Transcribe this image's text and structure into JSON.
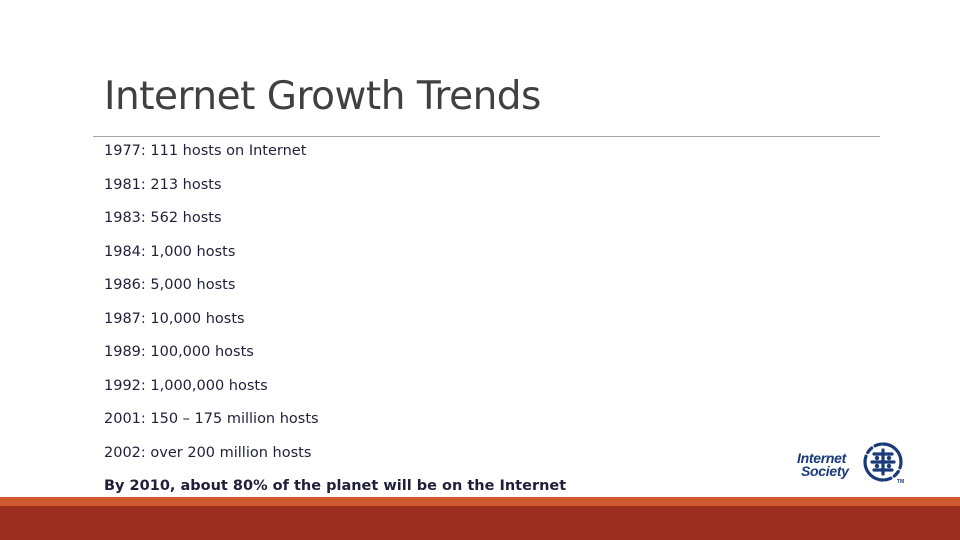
{
  "slide": {
    "title": "Internet Growth Trends",
    "bullets": [
      {
        "text": "1977: 111 hosts on Internet",
        "bold": false
      },
      {
        "text": "1981: 213 hosts",
        "bold": false
      },
      {
        "text": "1983: 562 hosts",
        "bold": false
      },
      {
        "text": "1984: 1,000 hosts",
        "bold": false
      },
      {
        "text": "1986: 5,000 hosts",
        "bold": false
      },
      {
        "text": "1987: 10,000 hosts",
        "bold": false
      },
      {
        "text": "1989: 100,000 hosts",
        "bold": false
      },
      {
        "text": "1992: 1,000,000 hosts",
        "bold": false
      },
      {
        "text": "2001: 150 – 175 million hosts",
        "bold": false
      },
      {
        "text": "2002: over 200 million hosts",
        "bold": false
      },
      {
        "text": "By 2010, about 80% of the planet will be on the Internet",
        "bold": true
      }
    ]
  },
  "logo": {
    "line1": "Internet",
    "line2": "Society",
    "trademark": "TM",
    "icon": "internet-society-globe-icon",
    "color": "#1a3a7a"
  },
  "colors": {
    "title": "#404040",
    "text": "#1f1f3a",
    "footer_bar": "#9c2f1f",
    "footer_accent": "#d05a2f",
    "rule": "#a6a6a6"
  }
}
